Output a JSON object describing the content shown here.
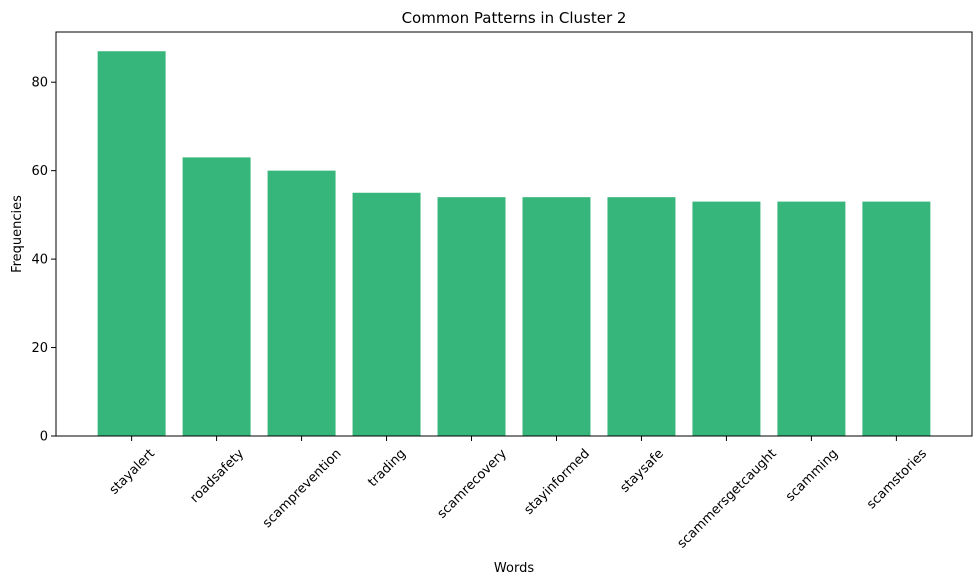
{
  "chart_data": {
    "type": "bar",
    "title": "Common Patterns in Cluster 2",
    "x_label": "Words",
    "y_label": "Frequencies",
    "categories": [
      "stayalert",
      "roadsafety",
      "scamprevention",
      "trading",
      "scamrecovery",
      "stayinformed",
      "staysafe",
      "scammersgetcaught",
      "scamming",
      "scamstories"
    ],
    "values": [
      87,
      63,
      60,
      55,
      54,
      54,
      54,
      53,
      53,
      53
    ],
    "color": "#36b67a",
    "ylim": [
      0,
      91.35
    ],
    "yticks": [
      0,
      20,
      40,
      60,
      80
    ],
    "grid": false
  }
}
